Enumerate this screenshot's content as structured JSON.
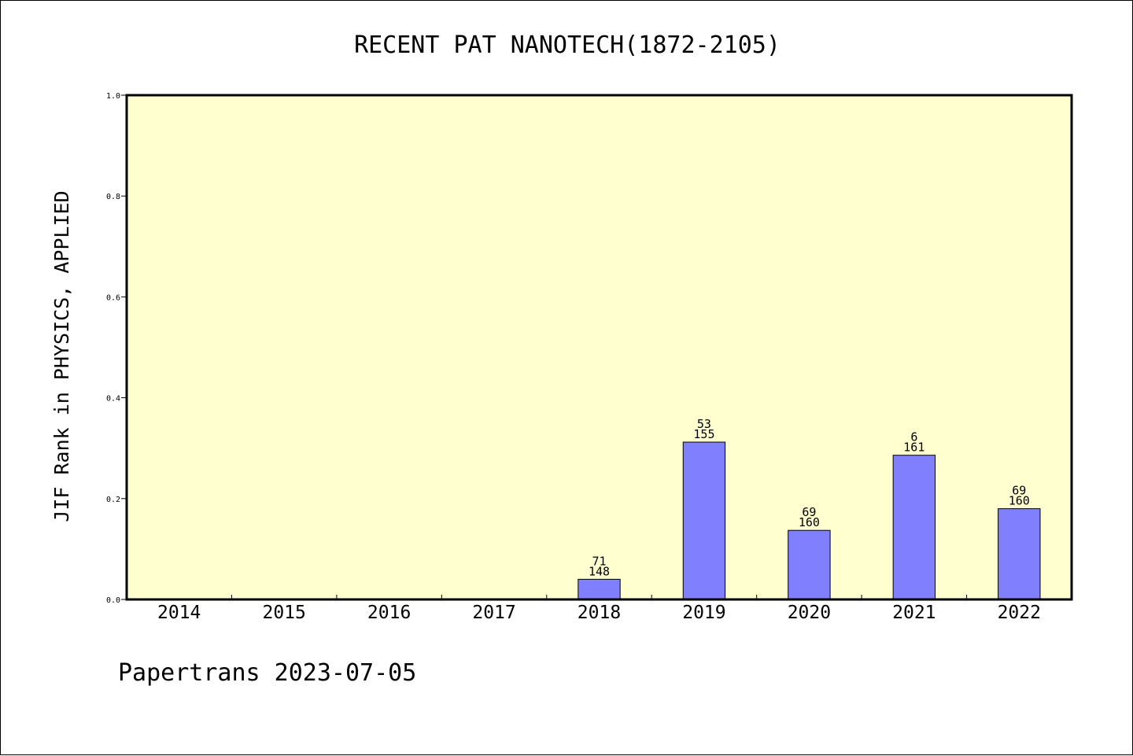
{
  "chart_data": {
    "type": "bar",
    "title": "RECENT PAT NANOTECH(1872-2105)",
    "xlabel": "",
    "ylabel": "JIF Rank in PHYSICS, APPLIED",
    "categories": [
      "2014",
      "2015",
      "2016",
      "2017",
      "2018",
      "2019",
      "2020",
      "2021",
      "2022"
    ],
    "values": [
      null,
      null,
      null,
      null,
      0.04,
      0.312,
      0.137,
      0.286,
      0.18
    ],
    "bar_labels": [
      null,
      null,
      null,
      null,
      {
        "top": "71",
        "bottom": "148"
      },
      {
        "top": "53",
        "bottom": "155"
      },
      {
        "top": "69",
        "bottom": "160"
      },
      {
        "top": "6",
        "bottom": "161"
      },
      {
        "top": "69",
        "bottom": "160"
      }
    ],
    "ylim": [
      0,
      1.0
    ],
    "yticks": [
      "0.0",
      "0.2",
      "0.4",
      "0.6",
      "0.8",
      "1.0"
    ],
    "grid": false,
    "legend": "none",
    "colors": {
      "plot_background": "#ffffd0",
      "bar_fill": "#8080ff",
      "bar_stroke": "#000000"
    }
  },
  "footer": "Papertrans 2023-07-05"
}
